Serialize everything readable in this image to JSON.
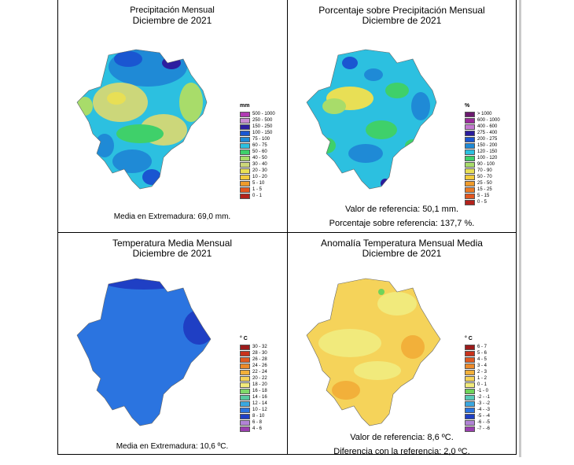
{
  "panels": {
    "p1": {
      "title": "Precipitación Mensual",
      "subtitle": "Diciembre de 2021",
      "unit": "mm",
      "legend": [
        {
          "label": "500 - 1000",
          "color": "#b13bb3"
        },
        {
          "label": "250 - 500",
          "color": "#c98bd3"
        },
        {
          "label": "150 - 250",
          "color": "#2d1ea0"
        },
        {
          "label": "100 - 150",
          "color": "#1a56d1"
        },
        {
          "label": "75 - 100",
          "color": "#1f8ad6"
        },
        {
          "label": "60 - 75",
          "color": "#2cc0e0"
        },
        {
          "label": "50 - 60",
          "color": "#3fd06a"
        },
        {
          "label": "40 - 50",
          "color": "#a8dc6a"
        },
        {
          "label": "30 - 40",
          "color": "#ccd77a"
        },
        {
          "label": "20 - 30",
          "color": "#e8df55"
        },
        {
          "label": "10 - 20",
          "color": "#f2cb3c"
        },
        {
          "label": "5 - 10",
          "color": "#ef9b2b"
        },
        {
          "label": "1 - 5",
          "color": "#e3561f"
        },
        {
          "label": "0 - 1",
          "color": "#b3221b"
        }
      ],
      "notes": [
        "Media en Extremadura: 69,0 mm."
      ]
    },
    "p2": {
      "title": "Porcentaje sobre Precipitación Mensual",
      "subtitle": "Diciembre de 2021",
      "unit": "%",
      "legend": [
        {
          "label": "> 1000",
          "color": "#6b1a6e"
        },
        {
          "label": "600 - 1000",
          "color": "#9a2a9b"
        },
        {
          "label": "400 - 600",
          "color": "#c47ad0"
        },
        {
          "label": "275 - 400",
          "color": "#2a1c9c"
        },
        {
          "label": "200 - 275",
          "color": "#1a56d1"
        },
        {
          "label": "150 - 200",
          "color": "#1f8ad6"
        },
        {
          "label": "120 - 150",
          "color": "#2cc0e0"
        },
        {
          "label": "100 - 120",
          "color": "#3fd06a"
        },
        {
          "label": "90 - 100",
          "color": "#a8dc6a"
        },
        {
          "label": "70 - 90",
          "color": "#e8df55"
        },
        {
          "label": "50 - 70",
          "color": "#f2cb3c"
        },
        {
          "label": "25 - 50",
          "color": "#ef9b2b"
        },
        {
          "label": "15 - 25",
          "color": "#ea7a25"
        },
        {
          "label": "5 - 15",
          "color": "#e3561f"
        },
        {
          "label": "0 - 5",
          "color": "#b3221b"
        }
      ],
      "notes": [
        "Valor de referencia: 50,1 mm.",
        "Porcentaje sobre referencia: 137,7 %."
      ]
    },
    "p3": {
      "title": "Temperatura Media Mensual",
      "subtitle": "Diciembre de 2021",
      "unit": "° C",
      "legend": [
        {
          "label": "30 - 32",
          "color": "#9c1b1b"
        },
        {
          "label": "28 - 30",
          "color": "#c8321c"
        },
        {
          "label": "26 - 28",
          "color": "#e05a22"
        },
        {
          "label": "24 - 26",
          "color": "#ec8a2a"
        },
        {
          "label": "22 - 24",
          "color": "#f2b03a"
        },
        {
          "label": "20 - 22",
          "color": "#f5d35a"
        },
        {
          "label": "18 - 20",
          "color": "#f1ea7c"
        },
        {
          "label": "16 - 18",
          "color": "#7fd86a"
        },
        {
          "label": "14 - 16",
          "color": "#58c9a0"
        },
        {
          "label": "12 - 14",
          "color": "#3aa8e0"
        },
        {
          "label": "10 - 12",
          "color": "#2b74e0"
        },
        {
          "label": "8 - 10",
          "color": "#1f3fc4"
        },
        {
          "label": "6 - 8",
          "color": "#b183d6"
        },
        {
          "label": "4 - 6",
          "color": "#9a3fb0"
        }
      ],
      "notes": [
        "Media en Extremadura: 10,6 ºC."
      ]
    },
    "p4": {
      "title": "Anomalía Temperatura Mensual Media",
      "subtitle": "Diciembre de 2021",
      "unit": "° C",
      "legend": [
        {
          "label": "6 - 7",
          "color": "#9c1b1b"
        },
        {
          "label": "5 - 6",
          "color": "#c8321c"
        },
        {
          "label": "4 - 5",
          "color": "#e05a22"
        },
        {
          "label": "3 - 4",
          "color": "#ec8a2a"
        },
        {
          "label": "2 - 3",
          "color": "#f2b03a"
        },
        {
          "label": "1 - 2",
          "color": "#f5d35a"
        },
        {
          "label": "0 - 1",
          "color": "#f1ea7c"
        },
        {
          "label": "-1 - 0",
          "color": "#6fd45a"
        },
        {
          "label": "-2 - -1",
          "color": "#58c9b8"
        },
        {
          "label": "-3 - -2",
          "color": "#3aa8e0"
        },
        {
          "label": "-4 - -3",
          "color": "#2b74e0"
        },
        {
          "label": "-5 - -4",
          "color": "#1f3fc4"
        },
        {
          "label": "-6 - -5",
          "color": "#b183d6"
        },
        {
          "label": "-7 - -6",
          "color": "#9a3fb0"
        }
      ],
      "notes": [
        "Valor de referencia: 8,6 ºC.",
        "Diferencia con la referencia: 2,0 ºC."
      ]
    }
  }
}
